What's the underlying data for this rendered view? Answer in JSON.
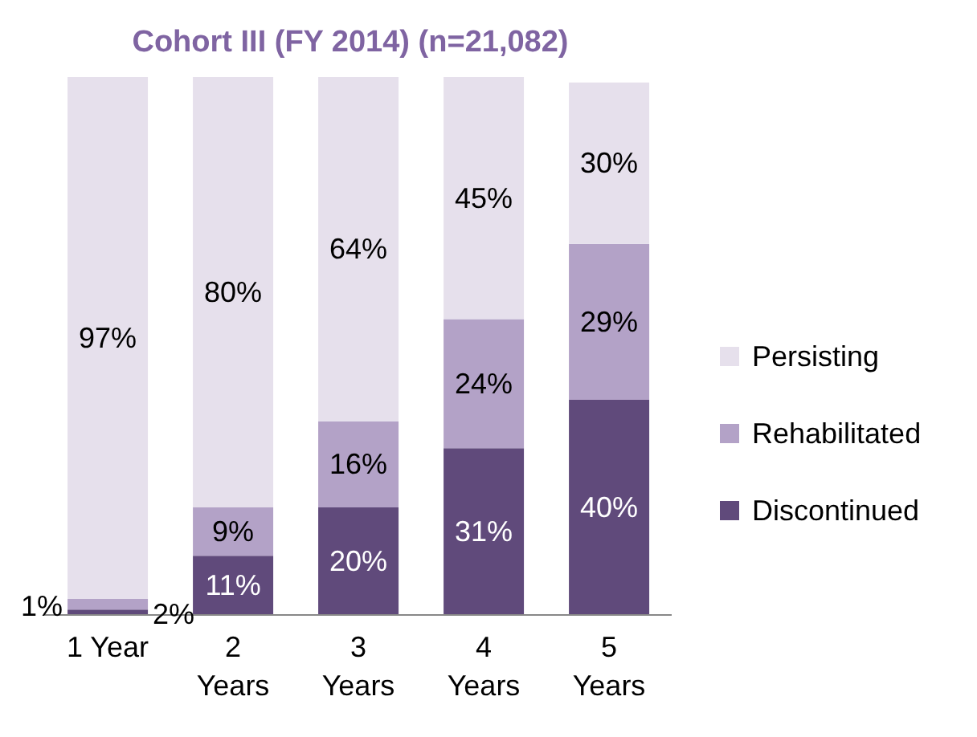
{
  "chart_data": {
    "type": "bar",
    "stacked": true,
    "title": "Cohort III (FY 2014) (n=21,082)",
    "categories": [
      "1 Year",
      "2 Years",
      "3 Years",
      "4 Years",
      "5 Years"
    ],
    "legend": "right",
    "series": [
      {
        "name": "Discontinued",
        "color": "#604a7b",
        "values": [
          1,
          11,
          20,
          31,
          40
        ],
        "value_labels": [
          "1%",
          "11%",
          "20%",
          "31%",
          "40%"
        ]
      },
      {
        "name": "Rehabilitated",
        "color": "#b3a2c7",
        "values": [
          2,
          9,
          16,
          24,
          29
        ],
        "value_labels": [
          "2%",
          "9%",
          "16%",
          "24%",
          "29%"
        ]
      },
      {
        "name": "Persisting",
        "color": "#e6e0ec",
        "values": [
          97,
          80,
          64,
          45,
          30
        ],
        "value_labels": [
          "97%",
          "80%",
          "64%",
          "45%",
          "30%"
        ]
      }
    ]
  }
}
